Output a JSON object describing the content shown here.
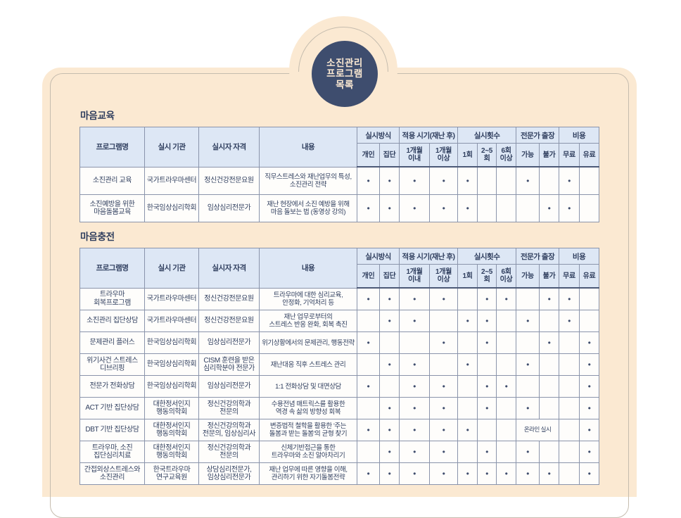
{
  "badge": {
    "lines": [
      "소진관리",
      "프로그램",
      "목록"
    ]
  },
  "colors": {
    "accent_navy": "#3e4d6e",
    "cream_background": "#fbe9d2",
    "header_blue": "#dde7f5",
    "text_navy": "#2f3e5e",
    "grid_border": "#8a94ab",
    "heavy_border": "#4c5977"
  },
  "table_header": {
    "program": "프로그램명",
    "org": "실시 기관",
    "qual": "실시자 자격",
    "content": "내용",
    "groups": [
      {
        "label": "실시방식",
        "cols": [
          "개인",
          "집단"
        ]
      },
      {
        "label": "적용 시기(재난 후)",
        "cols": [
          "1개월\n이내",
          "1개월\n이상"
        ]
      },
      {
        "label": "실시횟수",
        "cols": [
          "1회",
          "2~5\n회",
          "6회\n이상"
        ]
      },
      {
        "label": "전문가 출장",
        "cols": [
          "가능",
          "불가"
        ]
      },
      {
        "label": "비용",
        "cols": [
          "무료",
          "유료"
        ]
      }
    ]
  },
  "sections": [
    {
      "title": "마음교육",
      "rows": [
        {
          "program": "소진관리 교육",
          "org": "국가트라우마센터",
          "qual": "정신건강전문요원",
          "content": "직무스트레스와 재난업무의 특성,\n소진관리 전략",
          "marks": [
            "●",
            "●",
            "●",
            "●",
            "●",
            "",
            "",
            "●",
            "",
            "●",
            ""
          ]
        },
        {
          "program": "소진예방을 위한\n마음돌봄교육",
          "org": "한국임상심리학회",
          "qual": "임상심리전문가",
          "content": "재난 현장에서 소진 예방을 위해\n마음 돌보는 법 (동영상 강의)",
          "marks": [
            "●",
            "●",
            "●",
            "●",
            "●",
            "",
            "",
            "",
            "●",
            "●",
            ""
          ]
        }
      ]
    },
    {
      "title": "마음충전",
      "rows": [
        {
          "program": "트라우마\n회복프로그램",
          "org": "국가트라우마센터",
          "qual": "정신건강전문요원",
          "content": "트라우마에 대한 심리교육,\n안정화, 기억처리 등",
          "marks": [
            "●",
            "●",
            "●",
            "●",
            "",
            "●",
            "●",
            "",
            "●",
            "●",
            ""
          ]
        },
        {
          "program": "소진관리 집단상담",
          "org": "국가트라우마센터",
          "qual": "정신건강전문요원",
          "content": "재난 업무로부터의\n스트레스 반응 완화, 회복 촉진",
          "marks": [
            "",
            "●",
            "●",
            "",
            "●",
            "●",
            "",
            "●",
            "",
            "●",
            ""
          ]
        },
        {
          "program": "문제관리 플러스",
          "org": "한국임상심리학회",
          "qual": "임상심리전문가",
          "content": "위기상황에서의 문제관리, 행동전략",
          "marks": [
            "●",
            "",
            "",
            "●",
            "",
            "●",
            "",
            "",
            "●",
            "",
            "●"
          ]
        },
        {
          "program": "위기사건 스트레스\n디브리핑",
          "org": "한국임상심리학회",
          "qual": "CISM 훈련을 받은\n심리학분야 전문가",
          "content": "재난대응 직후 스트레스 관리",
          "marks": [
            "",
            "●",
            "●",
            "",
            "●",
            "",
            "",
            "●",
            "",
            "",
            "●"
          ]
        },
        {
          "program": "전문가 전화상담",
          "org": "한국임상심리학회",
          "qual": "임상심리전문가",
          "content": "1:1 전화상담 및 대면상담",
          "marks": [
            "●",
            "",
            "●",
            "●",
            "",
            "●",
            "●",
            "",
            "",
            "",
            "●"
          ]
        },
        {
          "program": "ACT 기반 집단상담",
          "org": "대한정서인지\n행동의학회",
          "qual": "정신건강의학과\n전문의",
          "content": "수용전념 매트릭스를 활용한\n역경 속 삶의 방향성 회복",
          "marks": [
            "",
            "●",
            "●",
            "●",
            "",
            "●",
            "",
            "●",
            "",
            "",
            "●"
          ]
        },
        {
          "program": "DBT 기반 집단상담",
          "org": "대한정서인지\n행동의학회",
          "qual": "정신건강의학과\n전문의, 임상심리사",
          "content": "변증법적 철학을 활용한 '주는\n돌봄과 받는 돌봄'의 균형 찾기",
          "marks": [
            "●",
            "●",
            "●",
            "●",
            "●",
            "",
            "",
            null,
            null,
            "",
            "●"
          ],
          "visit_note": "온라인 실시"
        },
        {
          "program": "트라우마, 소진\n집단심리치료",
          "org": "대한정서인지\n행동의학회",
          "qual": "정신건강의학과\n전문의",
          "content": "신체기반접근을 통한\n트라우마와 소진 알아차리기",
          "marks": [
            "",
            "●",
            "●",
            "●",
            "",
            "●",
            "",
            "●",
            "",
            "",
            "●"
          ]
        },
        {
          "program": "간접외상스트레스와\n소진관리",
          "org": "한국트라우마\n연구교육원",
          "qual": "상담심리전문가,\n임상심리전문가",
          "content": "재난 업무에 따른 영향을 이해,\n관리하기 위한 자기돌봄전략",
          "marks": [
            "●",
            "●",
            "●",
            "●",
            "●",
            "●",
            "●",
            "●",
            "●",
            "",
            "●"
          ]
        }
      ]
    }
  ]
}
